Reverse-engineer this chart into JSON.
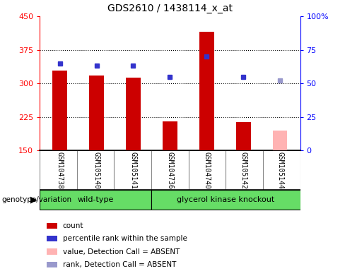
{
  "title": "GDS2610 / 1438114_x_at",
  "samples": [
    "GSM104738",
    "GSM105140",
    "GSM105141",
    "GSM104736",
    "GSM104740",
    "GSM105142",
    "GSM105144"
  ],
  "bar_heights": [
    328,
    318,
    313,
    215,
    415,
    213,
    195
  ],
  "bar_colors": [
    "#cc0000",
    "#cc0000",
    "#cc0000",
    "#cc0000",
    "#cc0000",
    "#cc0000",
    "#ffb3b3"
  ],
  "rank_values": [
    65,
    63,
    63,
    55,
    70,
    55,
    52
  ],
  "rank_colors": [
    "#3333cc",
    "#3333cc",
    "#3333cc",
    "#3333cc",
    "#3333cc",
    "#3333cc",
    "#9999cc"
  ],
  "ylim_left": [
    150,
    450
  ],
  "ylim_right": [
    0,
    100
  ],
  "yticks_left": [
    150,
    225,
    300,
    375,
    450
  ],
  "yticks_right": [
    0,
    25,
    50,
    75,
    100
  ],
  "yticklabels_right": [
    "0",
    "25",
    "50",
    "75",
    "100%"
  ],
  "grid_values": [
    225,
    300,
    375
  ],
  "num_wildtype": 3,
  "wildtype_label": "wild-type",
  "knockout_label": "glycerol kinase knockout",
  "genotype_label": "genotype/variation",
  "legend_items": [
    {
      "label": "count",
      "color": "#cc0000"
    },
    {
      "label": "percentile rank within the sample",
      "color": "#3333cc"
    },
    {
      "label": "value, Detection Call = ABSENT",
      "color": "#ffb3b3"
    },
    {
      "label": "rank, Detection Call = ABSENT",
      "color": "#9999cc"
    }
  ],
  "bar_bottom": 150,
  "bar_width": 0.4,
  "tick_area_bg": "#c8c8c8",
  "tick_area_border": "#888888",
  "cell_border_color": "#888888",
  "green_color": "#66dd66",
  "rank_marker_size": 5
}
